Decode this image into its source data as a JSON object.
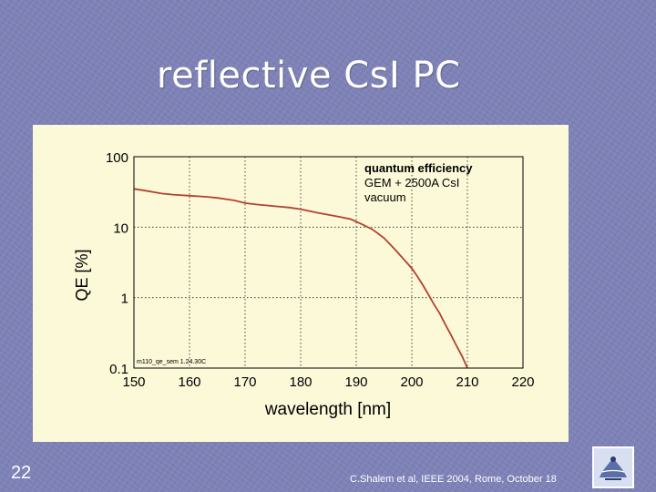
{
  "slide": {
    "title": "reflective CsI PC",
    "number": "22",
    "citation": "C.Shalem et al,  IEEE 2004, Rome, October 18"
  },
  "colors": {
    "background": "#7e82b7",
    "panel": "#fbf9d8",
    "curve": "#b5412f"
  },
  "chart_data": {
    "type": "line",
    "xlabel": "wavelength [nm]",
    "ylabel": "QE [%]",
    "xlim": [
      150,
      220
    ],
    "ylim": [
      0.1,
      100
    ],
    "y_scale": "log",
    "grid": true,
    "xticks": [
      "150",
      "160",
      "170",
      "180",
      "190",
      "200",
      "210",
      "220"
    ],
    "yticks": [
      "0.1",
      "1",
      "10",
      "100"
    ],
    "legend": {
      "placement": "top-right",
      "lines": [
        "quantum efficiency",
        "GEM + 2500A CsI",
        "vacuum"
      ]
    },
    "annotation": "m110_qe_sem 1.24.30C",
    "series": [
      {
        "x": [
          150,
          152,
          155,
          157,
          160,
          163,
          165,
          168,
          170,
          172,
          175,
          178,
          180,
          183,
          185,
          187,
          189,
          191,
          193,
          195,
          197,
          199,
          200,
          201,
          202,
          203,
          204,
          205,
          206,
          207,
          208,
          209,
          210
        ],
        "y": [
          35,
          33,
          30,
          29,
          28,
          27,
          26,
          24,
          22,
          21,
          20,
          19,
          18,
          16,
          15,
          14,
          13,
          11,
          9.2,
          7.0,
          4.8,
          3.2,
          2.6,
          2.0,
          1.5,
          1.1,
          0.8,
          0.6,
          0.42,
          0.3,
          0.21,
          0.15,
          0.1
        ]
      }
    ]
  }
}
